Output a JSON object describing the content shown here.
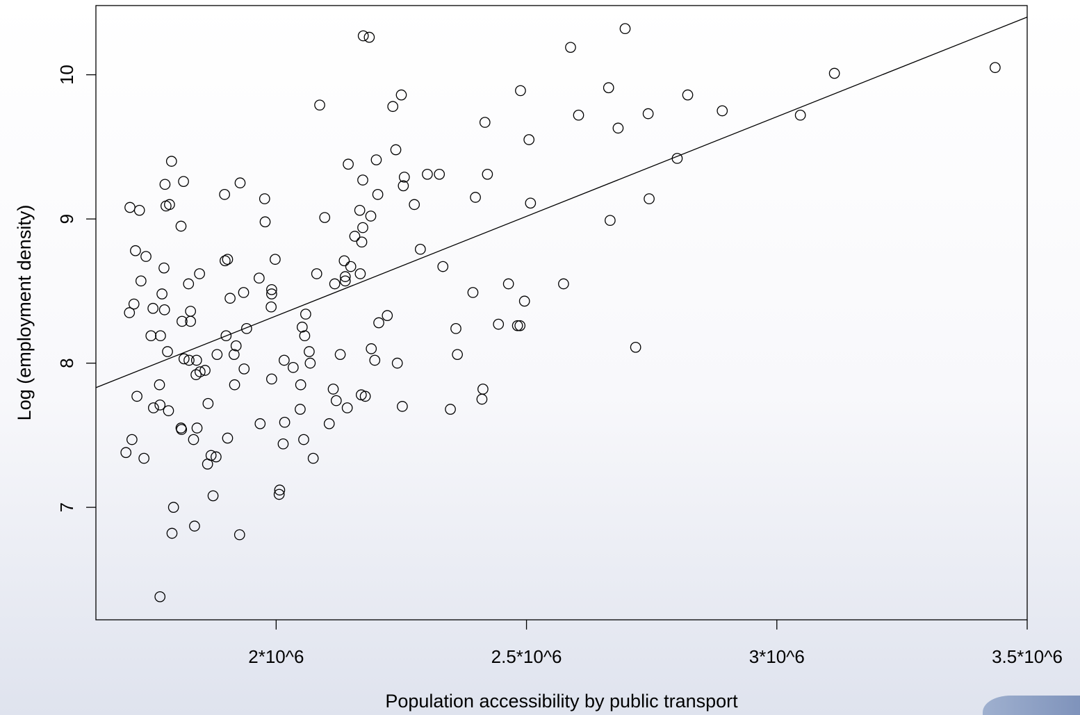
{
  "chart_data": {
    "type": "scatter",
    "title": "",
    "xlabel": "Population accessibility by public transport",
    "ylabel": "Log (employment density)",
    "xlim": [
      1640000,
      3500000
    ],
    "ylim": [
      6.22,
      10.48
    ],
    "x_ticks": [
      {
        "value": 2000000,
        "label": "2*10^6"
      },
      {
        "value": 2500000,
        "label": "2.5*10^6"
      },
      {
        "value": 3000000,
        "label": "3*10^6"
      },
      {
        "value": 3500000,
        "label": "3.5*10^6"
      }
    ],
    "y_ticks": [
      {
        "value": 7,
        "label": "7"
      },
      {
        "value": 8,
        "label": "8"
      },
      {
        "value": 9,
        "label": "9"
      },
      {
        "value": 10,
        "label": "10"
      }
    ],
    "grid": false,
    "colors": {
      "points": "#000000",
      "line": "#000000",
      "accent": "#8fa1c6"
    },
    "fit_line": {
      "x": [
        1640000,
        3500000
      ],
      "y": [
        7.83,
        10.4
      ]
    },
    "series": [
      {
        "points": [
          [
            1708000,
            9.08
          ],
          [
            1727000,
            9.06
          ],
          [
            1719000,
            8.78
          ],
          [
            1740000,
            8.74
          ],
          [
            1730000,
            8.57
          ],
          [
            1716000,
            8.41
          ],
          [
            1707000,
            8.35
          ],
          [
            1750000,
            8.19
          ],
          [
            1769000,
            8.19
          ],
          [
            1722000,
            7.77
          ],
          [
            1767000,
            7.85
          ],
          [
            1755000,
            7.69
          ],
          [
            1768000,
            7.71
          ],
          [
            1712000,
            7.47
          ],
          [
            1700000,
            7.38
          ],
          [
            1736000,
            7.34
          ],
          [
            1768000,
            6.38
          ],
          [
            1791000,
            9.4
          ],
          [
            1780000,
            9.09
          ],
          [
            1787000,
            9.1
          ],
          [
            1778000,
            9.24
          ],
          [
            1815000,
            9.26
          ],
          [
            1810000,
            8.95
          ],
          [
            1776000,
            8.66
          ],
          [
            1754000,
            8.38
          ],
          [
            1772000,
            8.48
          ],
          [
            1777000,
            8.37
          ],
          [
            1825000,
            8.55
          ],
          [
            1829000,
            8.36
          ],
          [
            1812000,
            8.29
          ],
          [
            1829000,
            8.29
          ],
          [
            1783000,
            8.08
          ],
          [
            1816000,
            8.03
          ],
          [
            1826000,
            8.02
          ],
          [
            1841000,
            8.02
          ],
          [
            1785000,
            7.67
          ],
          [
            1840000,
            7.92
          ],
          [
            1848000,
            7.94
          ],
          [
            1858000,
            7.95
          ],
          [
            1810000,
            7.55
          ],
          [
            1811000,
            7.54
          ],
          [
            1842000,
            7.55
          ],
          [
            1835000,
            7.47
          ],
          [
            1864000,
            7.72
          ],
          [
            1795000,
            7.0
          ],
          [
            1792000,
            6.82
          ],
          [
            1837000,
            6.87
          ],
          [
            1863000,
            7.3
          ],
          [
            1870000,
            7.36
          ],
          [
            1880000,
            7.35
          ],
          [
            1874000,
            7.08
          ],
          [
            1847000,
            8.62
          ],
          [
            1897000,
            9.17
          ],
          [
            1928000,
            9.25
          ],
          [
            1898000,
            8.71
          ],
          [
            1903000,
            8.72
          ],
          [
            1908000,
            8.45
          ],
          [
            1935000,
            8.49
          ],
          [
            1900000,
            8.19
          ],
          [
            1920000,
            8.12
          ],
          [
            1882000,
            8.06
          ],
          [
            1916000,
            8.06
          ],
          [
            1941000,
            8.24
          ],
          [
            1936000,
            7.96
          ],
          [
            1917000,
            7.85
          ],
          [
            1903000,
            7.48
          ],
          [
            1927000,
            6.81
          ],
          [
            1977000,
            9.14
          ],
          [
            1978000,
            8.98
          ],
          [
            1966000,
            8.59
          ],
          [
            1991000,
            8.51
          ],
          [
            1991000,
            8.48
          ],
          [
            1998000,
            8.72
          ],
          [
            1990000,
            8.39
          ],
          [
            1991000,
            7.89
          ],
          [
            1968000,
            7.58
          ],
          [
            2007000,
            7.12
          ],
          [
            2006000,
            7.09
          ],
          [
            2014000,
            7.44
          ],
          [
            2017000,
            7.59
          ],
          [
            2016000,
            8.02
          ],
          [
            2034000,
            7.97
          ],
          [
            2049000,
            7.85
          ],
          [
            2048000,
            7.68
          ],
          [
            2055000,
            7.47
          ],
          [
            2052000,
            8.25
          ],
          [
            2059000,
            8.34
          ],
          [
            2057000,
            8.19
          ],
          [
            2066000,
            8.08
          ],
          [
            2068000,
            8.0
          ],
          [
            2074000,
            7.34
          ],
          [
            2081000,
            8.62
          ],
          [
            2087000,
            9.79
          ],
          [
            2097000,
            9.01
          ],
          [
            2106000,
            7.58
          ],
          [
            2114000,
            7.82
          ],
          [
            2117000,
            8.55
          ],
          [
            2120000,
            7.74
          ],
          [
            2128000,
            8.06
          ],
          [
            2136000,
            8.71
          ],
          [
            2138000,
            8.6
          ],
          [
            2138000,
            8.57
          ],
          [
            2142000,
            7.69
          ],
          [
            2144000,
            9.38
          ],
          [
            2149000,
            8.67
          ],
          [
            2157000,
            8.88
          ],
          [
            2168000,
            8.62
          ],
          [
            2167000,
            9.06
          ],
          [
            2171000,
            8.84
          ],
          [
            2173000,
            8.94
          ],
          [
            2173000,
            9.27
          ],
          [
            2170000,
            7.78
          ],
          [
            2178000,
            7.77
          ],
          [
            2189000,
            9.02
          ],
          [
            2190000,
            8.1
          ],
          [
            2197000,
            8.02
          ],
          [
            2200000,
            9.41
          ],
          [
            2203000,
            9.17
          ],
          [
            2205000,
            8.28
          ],
          [
            2174000,
            10.27
          ],
          [
            2186000,
            10.26
          ],
          [
            2222000,
            8.33
          ],
          [
            2233000,
            9.78
          ],
          [
            2239000,
            9.48
          ],
          [
            2242000,
            8.0
          ],
          [
            2250000,
            9.86
          ],
          [
            2254000,
            9.23
          ],
          [
            2256000,
            9.29
          ],
          [
            2252000,
            7.7
          ],
          [
            2276000,
            9.1
          ],
          [
            2288000,
            8.79
          ],
          [
            2302000,
            9.31
          ],
          [
            2326000,
            9.31
          ],
          [
            2333000,
            8.67
          ],
          [
            2348000,
            7.68
          ],
          [
            2359000,
            8.24
          ],
          [
            2362000,
            8.06
          ],
          [
            2393000,
            8.49
          ],
          [
            2398000,
            9.15
          ],
          [
            2411000,
            7.75
          ],
          [
            2413000,
            7.82
          ],
          [
            2417000,
            9.67
          ],
          [
            2422000,
            9.31
          ],
          [
            2444000,
            8.27
          ],
          [
            2464000,
            8.55
          ],
          [
            2482000,
            8.26
          ],
          [
            2487000,
            8.26
          ],
          [
            2488000,
            9.89
          ],
          [
            2496000,
            8.43
          ],
          [
            2505000,
            9.55
          ],
          [
            2508000,
            9.11
          ],
          [
            2574000,
            8.55
          ],
          [
            2588000,
            10.19
          ],
          [
            2604000,
            9.72
          ],
          [
            2664000,
            9.91
          ],
          [
            2667000,
            8.99
          ],
          [
            2683000,
            9.63
          ],
          [
            2697000,
            10.32
          ],
          [
            2718000,
            8.11
          ],
          [
            2743000,
            9.73
          ],
          [
            2745000,
            9.14
          ],
          [
            2801000,
            9.42
          ],
          [
            2822000,
            9.86
          ],
          [
            2891000,
            9.75
          ],
          [
            3047000,
            9.72
          ],
          [
            3115000,
            10.01
          ],
          [
            3436000,
            10.05
          ]
        ]
      }
    ]
  }
}
